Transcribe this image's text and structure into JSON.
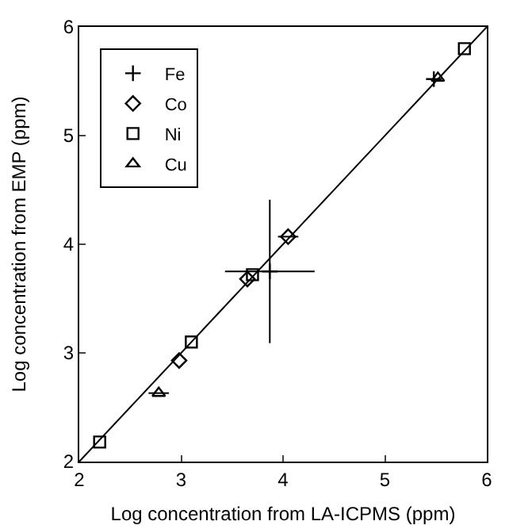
{
  "chart_data": {
    "type": "scatter",
    "xlabel": "Log concentration from LA-ICPMS (ppm)",
    "ylabel": "Log concentration from EMP (ppm)",
    "xlim": [
      2,
      6
    ],
    "ylim": [
      2,
      6
    ],
    "xticks": [
      2,
      3,
      4,
      5,
      6
    ],
    "yticks": [
      2,
      3,
      4,
      5,
      6
    ],
    "grid": false,
    "legend": "top left",
    "series": [
      {
        "name": "Fe",
        "color": "#000000",
        "marker": "cross",
        "x": [
          3.87,
          5.48
        ],
        "values": [
          3.75,
          5.52
        ],
        "errors": [
          0.66,
          null
        ],
        "xerrors": [
          0.44,
          null
        ]
      },
      {
        "name": "Co",
        "color": "#000000",
        "marker": "diamond",
        "x": [
          4.05,
          3.65,
          2.98
        ],
        "values": [
          4.07,
          3.68,
          2.93
        ],
        "xerrors": [
          0.1,
          null,
          null
        ]
      },
      {
        "name": "Ni",
        "color": "#000000",
        "marker": "square",
        "x": [
          2.2,
          3.1,
          3.7,
          5.78
        ],
        "values": [
          2.18,
          3.1,
          3.72,
          5.8
        ]
      },
      {
        "name": "Cu",
        "color": "#000000",
        "marker": "triangle",
        "x": [
          2.78,
          5.52
        ],
        "values": [
          2.63,
          5.53
        ],
        "xerrors": [
          0.1,
          null
        ]
      },
      {
        "type": "line",
        "color": "#000000",
        "marker": "none",
        "x": [
          2,
          6
        ],
        "values": [
          2,
          6
        ]
      }
    ]
  }
}
